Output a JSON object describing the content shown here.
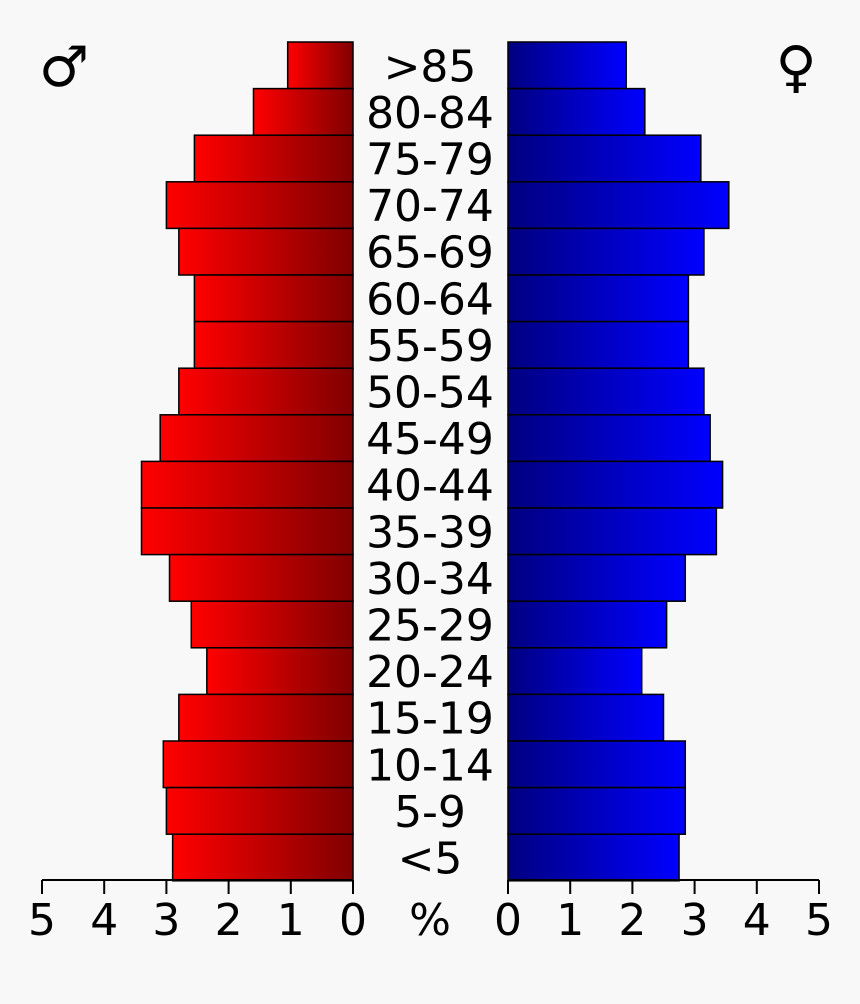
{
  "symbols": {
    "male": "♂",
    "female": "♀"
  },
  "colors": {
    "male_light": "#ff0000",
    "male_dark": "#800000",
    "female_dark": "#000080",
    "female_light": "#0000ff"
  },
  "chart_data": {
    "type": "bar",
    "orientation": "horizontal-population-pyramid",
    "categories": [
      ">85",
      "80-84",
      "75-79",
      "70-74",
      "65-69",
      "60-64",
      "55-59",
      "50-54",
      "45-49",
      "40-44",
      "35-39",
      "30-34",
      "25-29",
      "20-24",
      "15-19",
      "10-14",
      "5-9",
      "<5"
    ],
    "series": [
      {
        "side": "left",
        "values": [
          1.05,
          1.6,
          2.55,
          3.0,
          2.8,
          2.55,
          2.55,
          2.8,
          3.1,
          3.4,
          3.4,
          2.95,
          2.6,
          2.35,
          2.8,
          3.05,
          3.0,
          2.9
        ]
      },
      {
        "side": "right",
        "values": [
          1.9,
          2.2,
          3.1,
          3.55,
          3.15,
          2.9,
          2.9,
          3.15,
          3.25,
          3.45,
          3.35,
          2.85,
          2.55,
          2.15,
          2.5,
          2.85,
          2.85,
          2.75
        ]
      }
    ],
    "xlim": [
      0,
      5
    ],
    "tick_labels_left": [
      "5",
      "4",
      "3",
      "2",
      "1",
      "0"
    ],
    "tick_labels_right": [
      "0",
      "1",
      "2",
      "3",
      "4",
      "5"
    ],
    "unit_label": "%"
  }
}
